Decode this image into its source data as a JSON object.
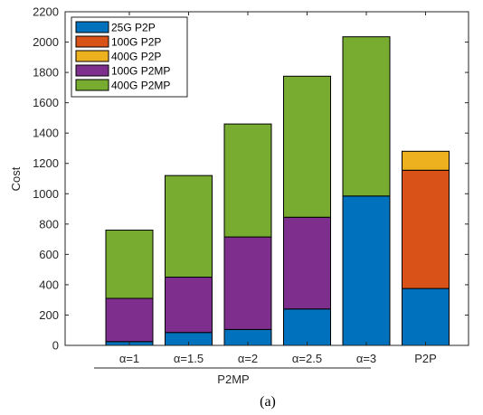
{
  "chart_data": {
    "type": "bar",
    "stacked": true,
    "ylabel": "Cost",
    "ylim": [
      0,
      2200
    ],
    "yticks": [
      0,
      200,
      400,
      600,
      800,
      1000,
      1200,
      1400,
      1600,
      1800,
      2000,
      2200
    ],
    "categories": [
      "α=1",
      "α=1.5",
      "α=2",
      "α=2.5",
      "α=3",
      "P2P"
    ],
    "group_label": "P2MP",
    "caption": "(a)",
    "legend_position": "top-left",
    "grid": false,
    "series": [
      {
        "name": "25G P2P",
        "color": "#0072BD",
        "values": [
          25,
          85,
          105,
          240,
          985,
          375
        ]
      },
      {
        "name": "100G P2P",
        "color": "#D95319",
        "values": [
          0,
          0,
          0,
          0,
          0,
          780
        ]
      },
      {
        "name": "400G P2P",
        "color": "#EDB120",
        "values": [
          0,
          0,
          0,
          0,
          0,
          125
        ]
      },
      {
        "name": "100G P2MP",
        "color": "#7E2F8E",
        "values": [
          285,
          365,
          610,
          605,
          0,
          0
        ]
      },
      {
        "name": "400G P2MP",
        "color": "#77AC30",
        "values": [
          450,
          670,
          745,
          930,
          1050,
          0
        ]
      }
    ]
  }
}
